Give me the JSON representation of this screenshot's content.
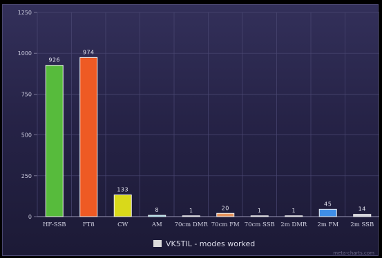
{
  "chart_data": {
    "type": "bar",
    "categories": [
      "HF-SSB",
      "FT8",
      "CW",
      "AM",
      "70cm DMR",
      "70cm FM",
      "70cm SSB",
      "2m DMR",
      "2m FM",
      "2m SSB"
    ],
    "series": [
      {
        "name": "VK5TIL - modes worked",
        "values": [
          926,
          974,
          133,
          8,
          1,
          20,
          1,
          1,
          45,
          14
        ]
      }
    ],
    "data_labels": [
      "926",
      "974",
      "133",
      "8",
      "1",
      "20",
      "1",
      "1",
      "45",
      "14"
    ],
    "colors": [
      "#57bb3c",
      "#ee5a24",
      "#d9d91a",
      "#6ec9df",
      "#9a9ab0",
      "#e6935c",
      "#9a9ab0",
      "#9a9ab0",
      "#3f8ee8",
      "#d4d4dc"
    ],
    "y_ticks": [
      "0",
      "250",
      "500",
      "750",
      "1000",
      "1250"
    ],
    "ylim": [
      0,
      1250
    ],
    "legend_position": "bottom-center",
    "legend_swatch_color": "#dcdcdc",
    "grid": true,
    "watermark": "meta-charts.com"
  }
}
